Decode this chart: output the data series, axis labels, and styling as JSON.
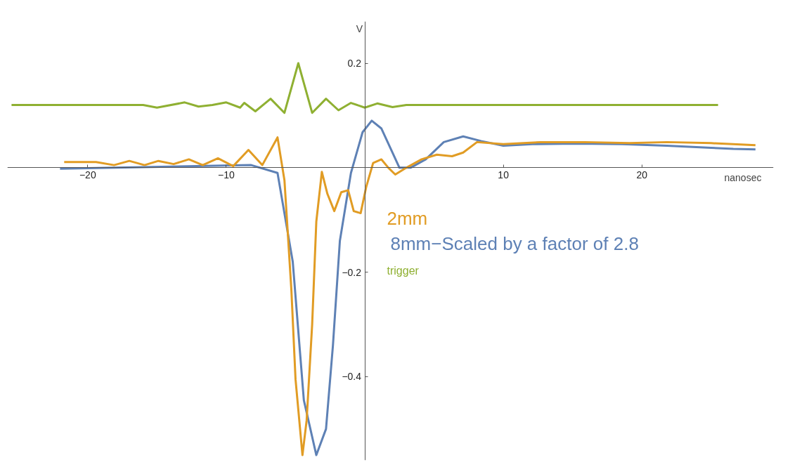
{
  "chart_data": {
    "type": "line",
    "xlabel": "nanosec",
    "ylabel": "V",
    "xlim": [
      -25.8,
      29.5
    ],
    "ylim": [
      -0.56,
      0.28
    ],
    "xticks": [
      {
        "value": -20,
        "label": "−20"
      },
      {
        "value": -10,
        "label": "−10"
      },
      10,
      20
    ],
    "yticks": [
      0.2,
      {
        "value": -0.2,
        "label": "−0.2"
      },
      {
        "value": -0.4,
        "label": "−0.4"
      }
    ],
    "legend": false,
    "line_style": "solid",
    "series": [
      {
        "name": "8mm−Scaled by a factor of 2.8",
        "color": "#5e81b5",
        "x": [
          -22,
          -8.2,
          -6.3,
          -5.2,
          -4.4,
          -3.5,
          -2.8,
          -2.3,
          -1.8,
          -1.0,
          -0.16,
          0.5,
          1.2,
          2.0,
          2.5,
          3.3,
          4.4,
          5.7,
          7.1,
          8.4,
          10,
          12.1,
          15.3,
          18.6,
          21.8,
          25,
          26.6,
          28.2
        ],
        "values": [
          -0.002,
          0.005,
          -0.01,
          -0.18,
          -0.445,
          -0.55,
          -0.5,
          -0.34,
          -0.14,
          -0.01,
          0.068,
          0.09,
          0.075,
          0.029,
          0,
          0,
          0.016,
          0.049,
          0.06,
          0.051,
          0.042,
          0.045,
          0.046,
          0.045,
          0.042,
          0.038,
          0.036,
          0.035
        ]
      },
      {
        "name": "2mm",
        "color": "#e19c24",
        "x": [
          -21.7,
          -19.4,
          -18.1,
          -17,
          -15.9,
          -14.9,
          -13.8,
          -12.7,
          -11.7,
          -10.6,
          -9.5,
          -8.4,
          -7.4,
          -6.3,
          -5.8,
          -5.3,
          -5.0,
          -4.5,
          -4.2,
          -3.8,
          -3.5,
          -3.1,
          -2.7,
          -2.2,
          -1.7,
          -1.2,
          -0.8,
          -0.3,
          0.1,
          0.6,
          1.2,
          1.7,
          2.2,
          3.0,
          4.1,
          5.2,
          6.3,
          7.1,
          8.1,
          10,
          12.7,
          15.9,
          19.1,
          21.8,
          25,
          28.2
        ],
        "values": [
          0.011,
          0.011,
          0.005,
          0.013,
          0.005,
          0.013,
          0.007,
          0.016,
          0.005,
          0.018,
          0.003,
          0.034,
          0.005,
          0.058,
          -0.024,
          -0.234,
          -0.405,
          -0.55,
          -0.484,
          -0.3,
          -0.103,
          -0.008,
          -0.05,
          -0.083,
          -0.047,
          -0.043,
          -0.083,
          -0.087,
          -0.037,
          0.009,
          0.016,
          0,
          -0.013,
          0,
          0.016,
          0.025,
          0.022,
          0.029,
          0.049,
          0.045,
          0.049,
          0.049,
          0.047,
          0.049,
          0.047,
          0.043
        ]
      },
      {
        "name": "trigger",
        "color": "#8fb032",
        "x": [
          -25.5,
          -16,
          -15,
          -13,
          -12,
          -11,
          -10,
          -9,
          -8.7,
          -7.9,
          -6.8,
          -5.8,
          -4.8,
          -3.8,
          -2.8,
          -1.9,
          -1.0,
          0,
          0.9,
          2.0,
          3.0,
          25.5
        ],
        "values": [
          0.12,
          0.12,
          0.115,
          0.125,
          0.117,
          0.12,
          0.125,
          0.115,
          0.124,
          0.108,
          0.132,
          0.105,
          0.2,
          0.105,
          0.132,
          0.11,
          0.124,
          0.115,
          0.123,
          0.116,
          0.12,
          0.12
        ]
      }
    ]
  }
}
